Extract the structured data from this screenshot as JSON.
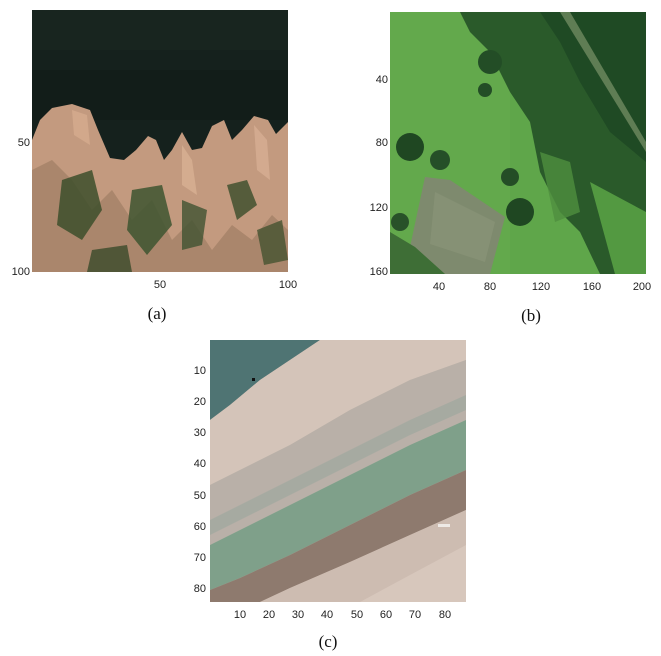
{
  "panels": {
    "a": {
      "caption": "(a)",
      "y_ticks": [
        "50",
        "100"
      ],
      "x_ticks": [
        "50",
        "100"
      ],
      "description_colors": {
        "water": "#15211d",
        "rock": "#c99b7d",
        "vegetation": "#3d4f2c"
      }
    },
    "b": {
      "caption": "(b)",
      "y_ticks": [
        "40",
        "80",
        "120",
        "160"
      ],
      "x_ticks": [
        "40",
        "80",
        "120",
        "160",
        "200"
      ],
      "description_colors": {
        "grass": "#5fa64a",
        "trees": "#1f4a24",
        "field": "#7e8a6e"
      }
    },
    "c": {
      "caption": "(c)",
      "y_ticks": [
        "10",
        "20",
        "30",
        "40",
        "50",
        "60",
        "70",
        "80"
      ],
      "x_ticks": [
        "10",
        "20",
        "30",
        "40",
        "50",
        "60",
        "70",
        "80"
      ],
      "description_colors": {
        "water": "#4f7473",
        "sand": "#c9b8ad",
        "green": "#7fa08a",
        "brown": "#8e7a6e"
      }
    }
  }
}
